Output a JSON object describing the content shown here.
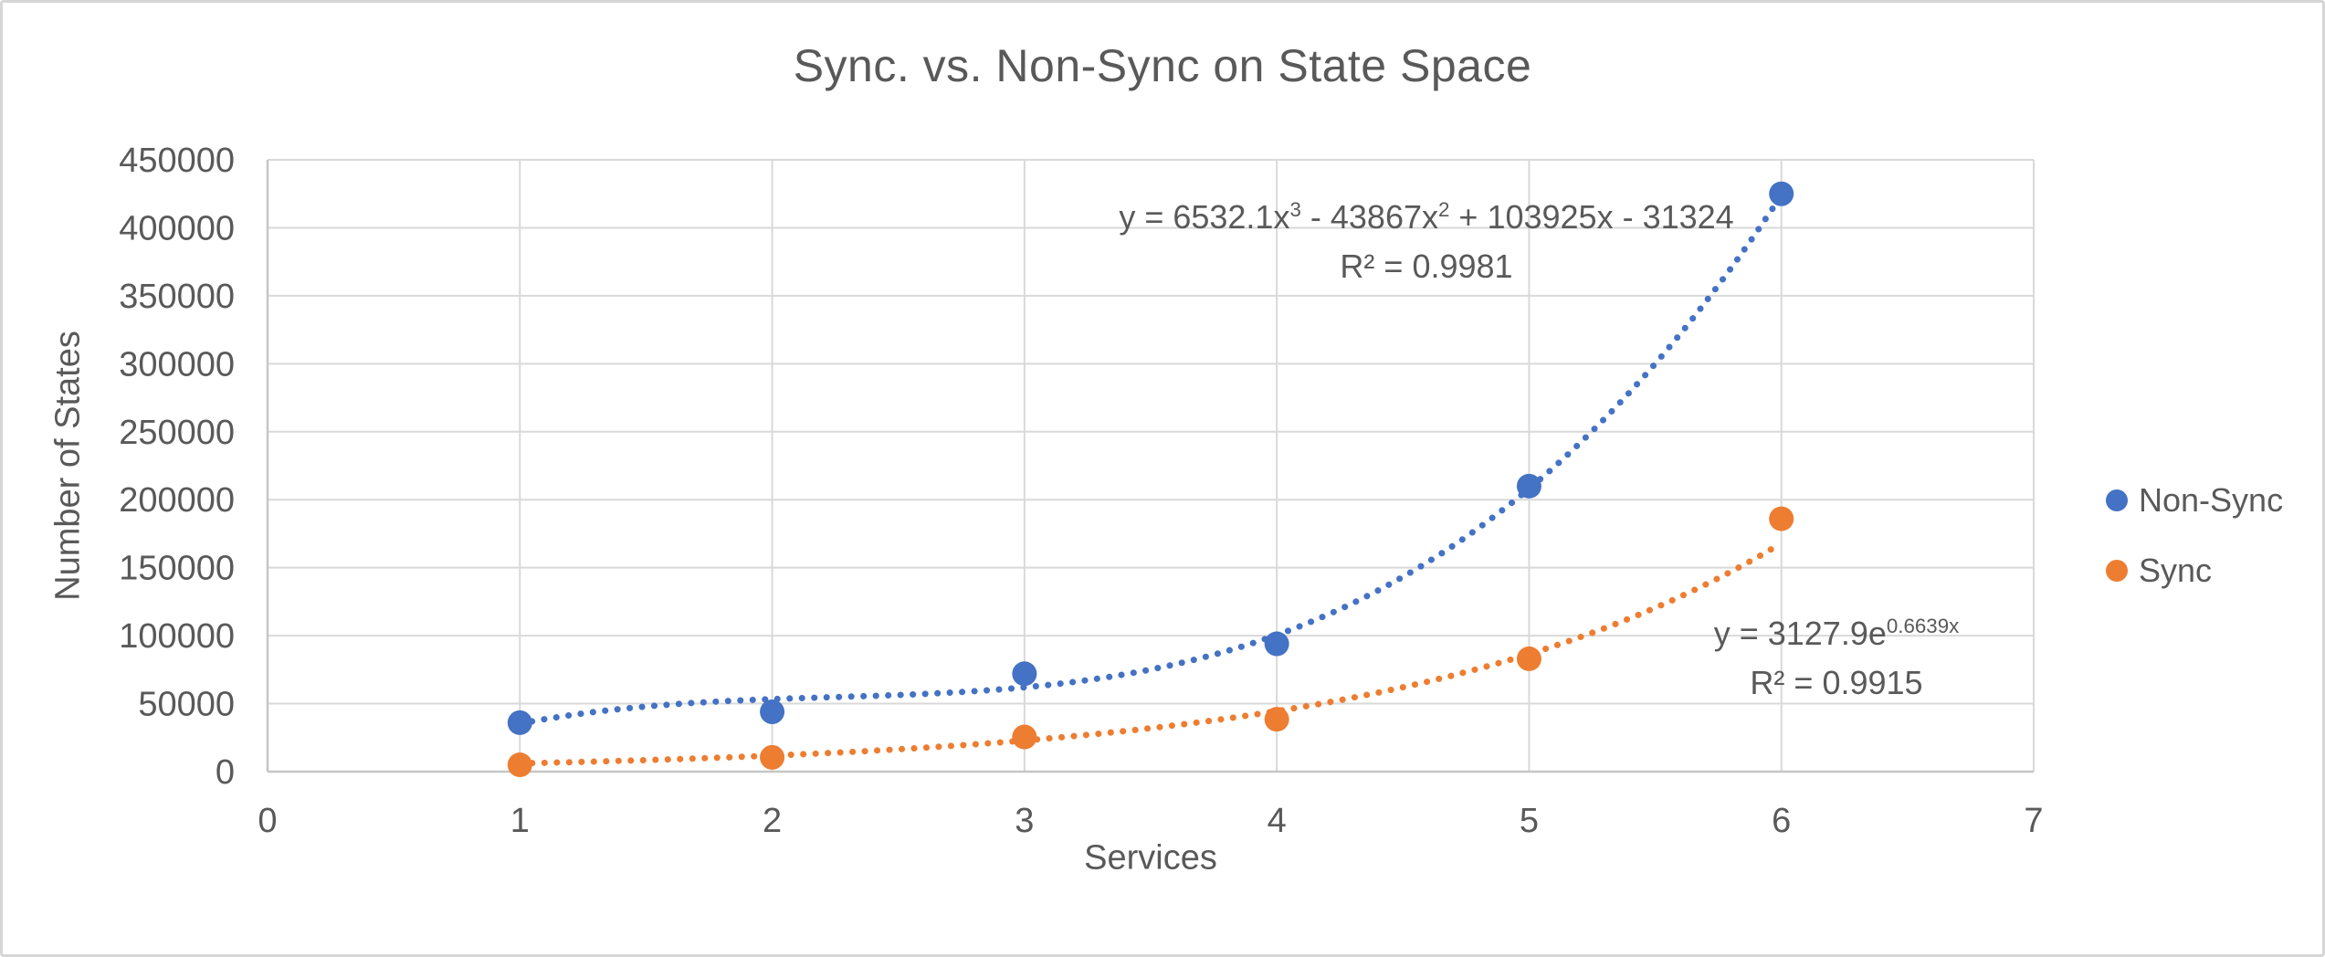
{
  "frame": {
    "background": "#FFFFFF",
    "border_color": "#D6D6D6",
    "gridline_color": "#D9D9D9",
    "axis_line_color": "#C6C6C6",
    "text_color": "#595959"
  },
  "chart_data": {
    "type": "scatter",
    "title": "Sync. vs. Non-Sync on State Space",
    "xlabel": "Services",
    "ylabel": "Number of States",
    "xlim": [
      0,
      7
    ],
    "ylim": [
      0,
      450000
    ],
    "grid": true,
    "legend_position": "right-middle",
    "x_tick_values": [
      0,
      1,
      2,
      3,
      4,
      5,
      6,
      7
    ],
    "x_tick_labels": [
      "0",
      "1",
      "2",
      "3",
      "4",
      "5",
      "6",
      "7"
    ],
    "y_tick_values": [
      0,
      50000,
      100000,
      150000,
      200000,
      250000,
      300000,
      350000,
      400000,
      450000
    ],
    "y_tick_labels": [
      "0",
      "50000",
      "100000",
      "150000",
      "200000",
      "250000",
      "300000",
      "350000",
      "400000",
      "450000"
    ],
    "series": [
      {
        "name": "Non-Sync",
        "color": "#4472C4",
        "marker": "circle",
        "x": [
          1,
          2,
          3,
          4,
          5,
          6
        ],
        "y": [
          36000,
          44000,
          72000,
          94000,
          210000,
          425000
        ],
        "trendline": {
          "kind": "polynomial",
          "order": 3,
          "coefficients": [
            6532.1,
            -43867,
            103925,
            -31324
          ],
          "range": [
            1,
            6
          ],
          "style": "dotted",
          "equation": "y = 6532.1x³ - 43867x² + 103925x - 31324",
          "r_squared": "R² = 0.9981"
        }
      },
      {
        "name": "Sync",
        "color": "#ED7D31",
        "marker": "circle",
        "x": [
          1,
          2,
          3,
          4,
          5,
          6
        ],
        "y": [
          5000,
          10500,
          25500,
          38500,
          83000,
          186000
        ],
        "trendline": {
          "kind": "exponential",
          "a": 3127.9,
          "b": 0.6639,
          "range": [
            1,
            6
          ],
          "style": "dotted",
          "equation": "y = 3127.9e^0.6639x",
          "r_squared": "R² = 0.9915"
        }
      }
    ]
  },
  "annotations": {
    "poly_eq_p1": "y = 6532.1x",
    "poly_eq_s1": "3",
    "poly_eq_p2": " - 43867x",
    "poly_eq_s2": "2",
    "poly_eq_p3": " + 103925x - 31324",
    "poly_r2": "R² = 0.9981",
    "exp_eq_p1": "y = 3127.9e",
    "exp_eq_s1": "0.6639x",
    "exp_r2": "R² = 0.9915"
  },
  "legend": {
    "items": [
      {
        "label": "Non-Sync",
        "color": "#4472C4"
      },
      {
        "label": "Sync",
        "color": "#ED7D31"
      }
    ]
  }
}
